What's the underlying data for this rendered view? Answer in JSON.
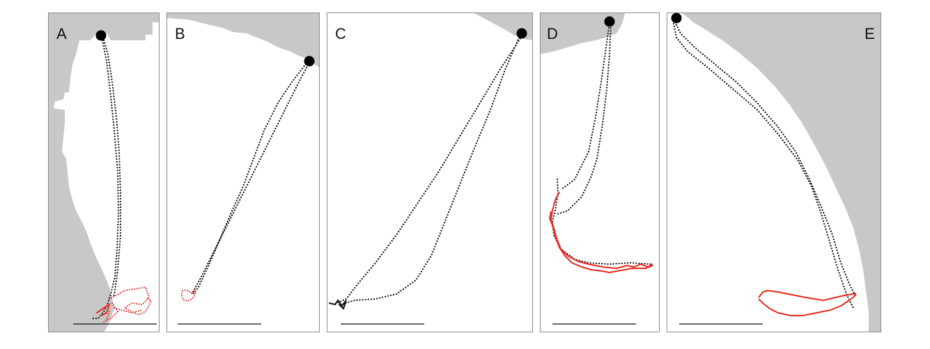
{
  "figure": {
    "colors": {
      "land": "#c8c8c8",
      "sea": "#ffffff",
      "frame": "#8a8a8a",
      "track_outbound": "#111111",
      "track_foraging": "#e8281e",
      "colony_marker": "#000000",
      "scale_bar": "#111111"
    },
    "panels": [
      {
        "label": "A",
        "name": "panel-a",
        "foraging_style": "dotted"
      },
      {
        "label": "B",
        "name": "panel-b",
        "foraging_style": "dotted"
      },
      {
        "label": "C",
        "name": "panel-c",
        "foraging_style": "none"
      },
      {
        "label": "D",
        "name": "panel-d",
        "foraging_style": "solid"
      },
      {
        "label": "E",
        "name": "panel-e",
        "foraging_style": "solid"
      }
    ]
  }
}
